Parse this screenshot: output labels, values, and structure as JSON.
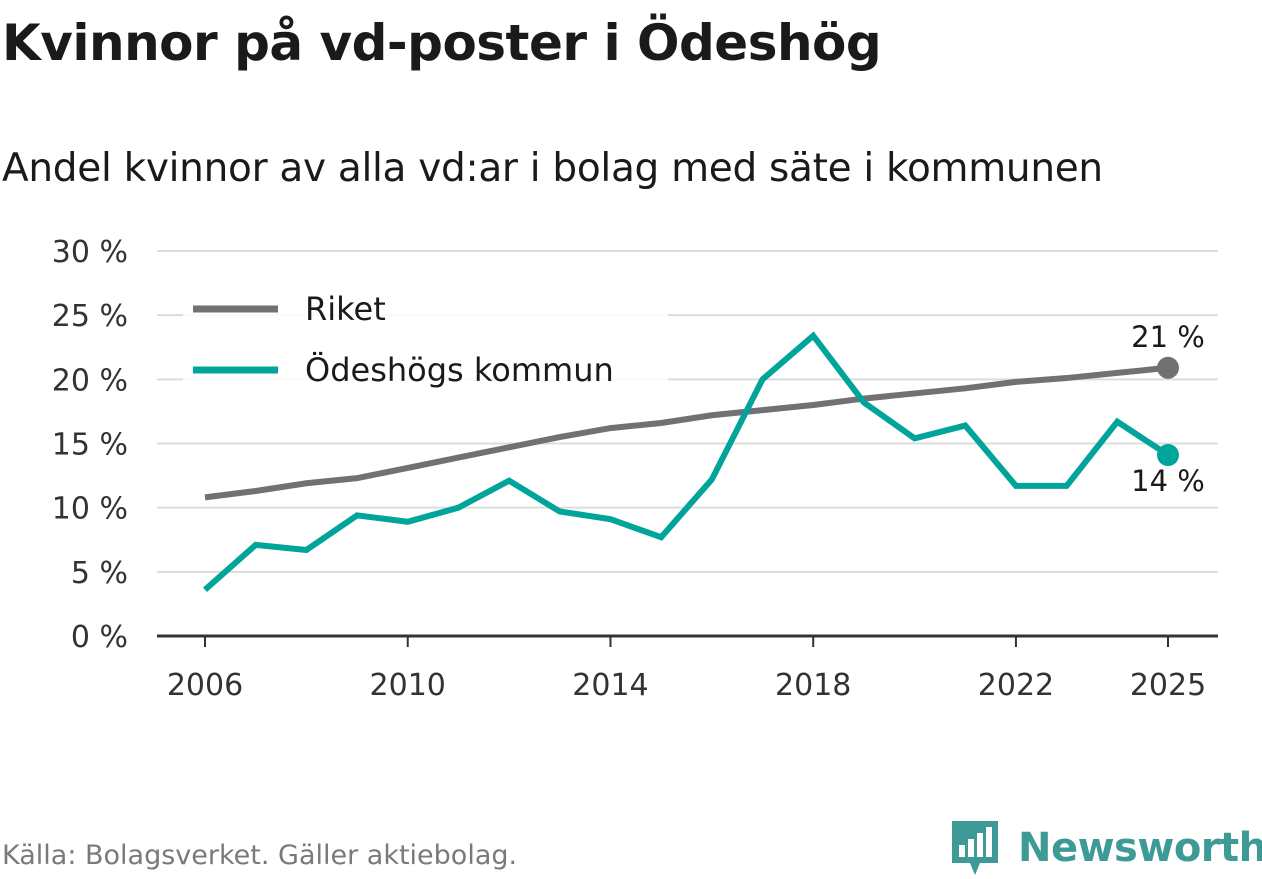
{
  "header": {
    "title": "Kvinnor på vd-poster i Ödeshög",
    "subtitle": "Andel kvinnor av alla vd:ar i bolag med säte i kommunen"
  },
  "footer": {
    "source": "Källa: Bolagsverket. Gäller aktiebolag.",
    "brand": "Newsworthy",
    "brand_icon": "bar-chart-logo-icon"
  },
  "colors": {
    "riket": "#717075",
    "kommun": "#00a49a",
    "grid": "#dcdcdc",
    "axis": "#333333",
    "brand": "#3e9a96"
  },
  "chart_data": {
    "type": "line",
    "title": "Kvinnor på vd-poster i Ödeshög",
    "subtitle": "Andel kvinnor av alla vd:ar i bolag med säte i kommunen",
    "xlabel": "",
    "ylabel": "",
    "x": [
      2006,
      2007,
      2008,
      2009,
      2010,
      2011,
      2012,
      2013,
      2014,
      2015,
      2016,
      2017,
      2018,
      2019,
      2020,
      2021,
      2022,
      2023,
      2024,
      2025
    ],
    "x_ticks": [
      "2006",
      "2010",
      "2014",
      "2018",
      "2022",
      "2025"
    ],
    "ylim": [
      0,
      30
    ],
    "y_ticks": [
      "0 %",
      "5 %",
      "10 %",
      "15 %",
      "20 %",
      "25 %",
      "30 %"
    ],
    "grid": true,
    "legend_position": "top-left",
    "series": [
      {
        "name": "Riket",
        "color": "#717075",
        "values": [
          10.8,
          11.3,
          11.9,
          12.3,
          13.1,
          13.9,
          14.7,
          15.5,
          16.2,
          16.6,
          17.2,
          17.6,
          18.0,
          18.5,
          18.9,
          19.3,
          19.8,
          20.1,
          20.5,
          20.9
        ],
        "end_label": "21 %"
      },
      {
        "name": "Ödeshögs kommun",
        "color": "#00a49a",
        "values": [
          3.6,
          7.1,
          6.7,
          9.4,
          8.9,
          10.0,
          12.1,
          9.7,
          9.1,
          7.7,
          12.2,
          20.0,
          23.4,
          18.2,
          15.4,
          16.4,
          11.7,
          11.7,
          16.7,
          14.1
        ],
        "end_label": "14 %"
      }
    ]
  }
}
